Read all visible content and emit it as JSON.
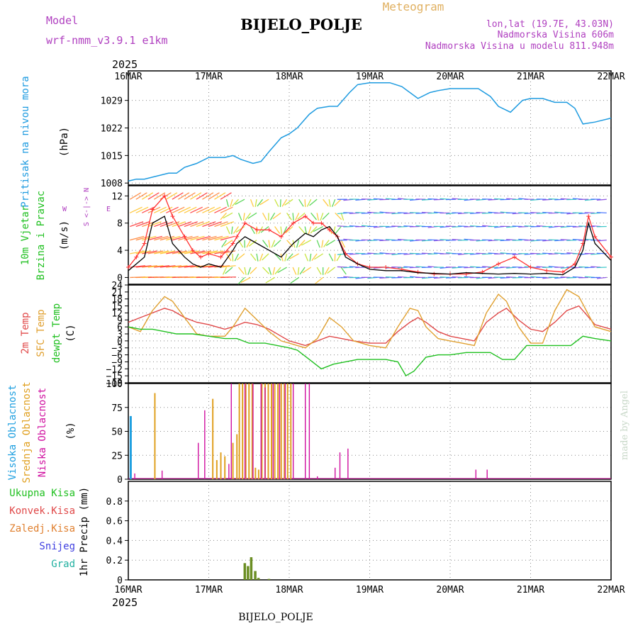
{
  "header": {
    "model_label": "Model",
    "model_name": "wrf-nmm_v3.9.1 e1km",
    "title": "BIJELO_POLJE",
    "meteogram": "Meteogram",
    "lonlat": "lon,lat (19.7E, 43.03N)",
    "altitude": "Nadmorska Visina 606m",
    "model_altitude": "Nadmorska Visina u modelu 811.948m"
  },
  "footer": {
    "station": "BIJELO_POLJE"
  },
  "credit": "made by Angel",
  "colors": {
    "pressure": "#1e9be0",
    "wind_speed": "#000000",
    "wind_gust": "#ff3030",
    "temp_2m": "#e04848",
    "temp_sfc": "#e0a030",
    "dewpoint": "#20c020",
    "cloud_high": "#20a0e0",
    "cloud_mid": "#e0a020",
    "cloud_low": "#d010a0",
    "precip": "#6b8e23",
    "title_purple": "#b040c0",
    "meteogram_orange": "#e0b060"
  },
  "time_axis": {
    "year_label": "2025",
    "ticks": [
      "16MAR",
      "17MAR",
      "18MAR",
      "19MAR",
      "20MAR",
      "21MAR",
      "22MAR"
    ]
  },
  "panels": {
    "pressure": {
      "ylabel_main": "Pritisak na nivou mora",
      "unit": "(hPa)"
    },
    "wind": {
      "ylabel_1": "10m Vjetar",
      "ylabel_2": "Brzina i Pravac",
      "unit": "(m/s)",
      "compass_ns": "S <-|-> N",
      "compass_w": "W",
      "compass_e": "E"
    },
    "temp": {
      "label_2m": "2m Temp",
      "label_sfc": "SFC Temp",
      "label_dew": "dewpt Temp",
      "unit": "(C)"
    },
    "cloud": {
      "label_high": "Visoka Oblacnost",
      "label_mid": "Srednja Oblacnost",
      "label_low": "Niska Oblacnost",
      "unit": "(%)"
    },
    "precip": {
      "label_total": "Ukupna Kisa",
      "label_conv": "Konvek.Kisa",
      "label_frz": "Zaledj.Kisa",
      "label_snow": "Snijeg",
      "label_grad": "Grad",
      "unit": "1hr Precip (mm)"
    }
  },
  "chart_data": [
    {
      "type": "line",
      "panel": "pressure",
      "x_range_days": [
        16,
        22
      ],
      "ylim": [
        1007.5,
        1036.5
      ],
      "yticks": [
        1008,
        1015,
        1022,
        1029
      ],
      "grid": true,
      "series": [
        {
          "x": [
            16.0,
            16.1,
            16.2,
            16.3,
            16.5,
            16.6,
            16.7,
            16.85,
            17.0,
            17.2,
            17.3,
            17.4,
            17.55,
            17.65,
            17.75,
            17.9,
            18.0,
            18.1,
            18.25,
            18.35,
            18.5,
            18.6,
            18.75,
            18.85,
            19.0,
            19.15,
            19.25,
            19.4,
            19.6,
            19.75,
            19.85,
            20.0,
            20.2,
            20.35,
            20.5,
            20.6,
            20.75,
            20.9,
            21.0,
            21.15,
            21.3,
            21.45,
            21.55,
            21.65,
            21.8,
            22.0
          ],
          "y": [
            1008.5,
            1009,
            1009,
            1009.5,
            1010.5,
            1010.5,
            1012,
            1013,
            1014.5,
            1014.5,
            1015,
            1014,
            1013,
            1013.5,
            1016,
            1019.5,
            1020.5,
            1022,
            1025.5,
            1027,
            1027.5,
            1027.5,
            1031,
            1033,
            1033.5,
            1033.5,
            1033.5,
            1032.5,
            1029.5,
            1031,
            1031.5,
            1032,
            1032,
            1032,
            1030,
            1027.5,
            1026,
            1029,
            1029.5,
            1029.5,
            1028.5,
            1028.5,
            1027,
            1023,
            1023.5,
            1024.5
          ]
        }
      ]
    },
    {
      "type": "line",
      "panel": "wind",
      "ylim": [
        -1,
        13.5
      ],
      "yticks": [
        0,
        4,
        8,
        12
      ],
      "grid": true,
      "series": [
        {
          "x": [
            16.0,
            16.1,
            16.2,
            16.3,
            16.45,
            16.55,
            16.7,
            16.8,
            16.9,
            17.0,
            17.15,
            17.3,
            17.35,
            17.45,
            17.6,
            17.75,
            17.9,
            18.05,
            18.2,
            18.3,
            18.4,
            18.5,
            18.6,
            18.7,
            18.85,
            19.0,
            19.2,
            19.4,
            19.6,
            19.8,
            20.0,
            20.2,
            20.4,
            20.6,
            20.8,
            21.0,
            21.2,
            21.4,
            21.55,
            21.65,
            21.72,
            21.8,
            22.0
          ],
          "y": [
            1,
            2,
            3,
            8,
            9,
            5,
            3,
            2,
            1.5,
            2,
            1.5,
            4,
            5,
            6,
            5,
            4,
            3,
            5,
            6.5,
            6,
            7,
            7.5,
            6,
            3,
            2,
            1.2,
            1,
            1,
            0.7,
            0.6,
            0.5,
            0.7,
            0.6,
            0.5,
            0.6,
            0.5,
            0.6,
            0.4,
            1.5,
            4,
            8,
            5,
            2.5
          ]
        },
        {
          "x": [
            16.0,
            16.1,
            16.2,
            16.3,
            16.45,
            16.55,
            16.7,
            16.8,
            16.9,
            17.0,
            17.15,
            17.3,
            17.35,
            17.45,
            17.6,
            17.75,
            17.9,
            18.05,
            18.2,
            18.3,
            18.4,
            18.5,
            18.6,
            18.7,
            18.85,
            19.0,
            19.2,
            19.4,
            19.6,
            19.8,
            20.0,
            20.2,
            20.4,
            20.6,
            20.8,
            21.0,
            21.2,
            21.4,
            21.55,
            21.65,
            21.72,
            21.8,
            22.0
          ],
          "y": [
            1.5,
            3,
            5,
            10,
            12,
            9,
            6,
            4,
            3,
            3.5,
            3,
            5,
            6,
            8,
            7,
            7,
            6,
            8,
            9,
            8,
            8,
            7,
            6,
            3.5,
            2,
            1.5,
            1.5,
            1.2,
            0.8,
            0.5,
            0.5,
            0.5,
            0.8,
            2,
            3,
            1.5,
            1,
            0.8,
            2,
            5,
            9,
            6,
            3
          ]
        }
      ]
    },
    {
      "type": "line",
      "panel": "temperature",
      "ylim": [
        -18,
        24
      ],
      "yticks": [
        -18,
        -15,
        -12,
        -9,
        -6,
        -3,
        0,
        3,
        6,
        9,
        12,
        15,
        18,
        21,
        24
      ],
      "grid": true,
      "series": [
        {
          "name": "2m Temp",
          "x": [
            16.0,
            16.15,
            16.3,
            16.45,
            16.55,
            16.7,
            16.85,
            17.0,
            17.2,
            17.3,
            17.45,
            17.6,
            17.75,
            17.9,
            18.0,
            18.1,
            18.2,
            18.35,
            18.5,
            18.65,
            18.8,
            19.0,
            19.2,
            19.35,
            19.5,
            19.6,
            19.7,
            19.85,
            20.0,
            20.15,
            20.3,
            20.45,
            20.6,
            20.7,
            20.85,
            21.0,
            21.15,
            21.3,
            21.45,
            21.6,
            21.8,
            22.0
          ],
          "y": [
            8,
            10,
            12,
            14,
            13,
            10,
            8,
            7,
            5,
            6,
            8,
            7,
            5,
            2,
            0,
            -1,
            -2,
            0,
            2,
            1,
            0,
            -1,
            -1,
            4,
            8,
            10,
            8,
            4,
            2,
            1,
            0,
            8,
            12,
            14,
            9,
            5,
            4,
            8,
            13,
            15,
            7,
            5
          ]
        },
        {
          "name": "SFC Temp",
          "x": [
            16.0,
            16.15,
            16.3,
            16.45,
            16.55,
            16.7,
            16.85,
            17.0,
            17.2,
            17.3,
            17.45,
            17.6,
            17.75,
            17.9,
            18.0,
            18.1,
            18.2,
            18.35,
            18.5,
            18.65,
            18.8,
            19.0,
            19.2,
            19.35,
            19.5,
            19.6,
            19.7,
            19.85,
            20.0,
            20.15,
            20.3,
            20.45,
            20.6,
            20.7,
            20.85,
            21.0,
            21.15,
            21.3,
            21.45,
            21.6,
            21.8,
            22.0
          ],
          "y": [
            6,
            4,
            13,
            19,
            17,
            10,
            3,
            2,
            2,
            6,
            14,
            9,
            4,
            0,
            -1,
            -2,
            -3,
            1,
            10,
            6,
            0,
            -2,
            -3,
            6,
            14,
            13,
            6,
            1,
            0,
            -1,
            -2,
            12,
            20,
            17,
            6,
            -1,
            -1,
            13,
            22,
            19,
            6,
            4
          ]
        },
        {
          "name": "dewpt Temp",
          "x": [
            16.0,
            16.15,
            16.3,
            16.45,
            16.6,
            16.8,
            17.0,
            17.2,
            17.35,
            17.5,
            17.7,
            17.85,
            18.0,
            18.1,
            18.25,
            18.4,
            18.55,
            18.7,
            18.85,
            19.0,
            19.2,
            19.35,
            19.45,
            19.55,
            19.7,
            19.85,
            20.0,
            20.2,
            20.35,
            20.5,
            20.65,
            20.8,
            20.95,
            21.1,
            21.3,
            21.5,
            21.65,
            21.8,
            22.0
          ],
          "y": [
            6,
            5,
            5,
            4,
            3,
            3,
            2,
            1,
            1,
            -1,
            -1,
            -2,
            -3,
            -4,
            -8,
            -12,
            -10,
            -9,
            -8,
            -8,
            -8,
            -9,
            -15,
            -13,
            -7,
            -6,
            -6,
            -5,
            -5,
            -5,
            -8,
            -8,
            -2,
            -2,
            -2,
            -2,
            2,
            1,
            0
          ]
        }
      ]
    },
    {
      "type": "bar",
      "panel": "cloud",
      "ylim": [
        0,
        100
      ],
      "yticks": [
        0,
        25,
        50,
        75,
        100
      ],
      "grid": true,
      "series": [
        {
          "name": "Visoka Oblacnost",
          "x": [
            16.03
          ],
          "y": [
            66
          ]
        },
        {
          "name": "Srednja Oblacnost",
          "x": [
            16.33,
            17.05,
            17.1,
            17.15,
            17.2,
            17.3,
            17.35,
            17.38,
            17.42,
            17.46,
            17.5,
            17.54,
            17.58,
            17.62,
            17.66,
            17.7,
            17.74,
            17.78,
            17.82,
            17.86,
            17.9,
            17.94,
            17.98,
            18.02
          ],
          "y": [
            90,
            84,
            20,
            28,
            24,
            38,
            47,
            100,
            100,
            100,
            100,
            100,
            12,
            10,
            100,
            100,
            100,
            100,
            100,
            100,
            100,
            100,
            100,
            100
          ]
        },
        {
          "name": "Niska Oblacnost",
          "x": [
            16.08,
            16.42,
            16.87,
            16.95,
            17.25,
            17.28,
            17.45,
            17.55,
            17.65,
            17.7,
            17.8,
            17.88,
            17.95,
            18.05,
            18.2,
            18.25,
            18.35,
            18.57,
            18.63,
            18.73,
            20.32,
            20.46
          ],
          "y": [
            6,
            9,
            38,
            72,
            16,
            100,
            100,
            100,
            100,
            96,
            100,
            100,
            100,
            100,
            100,
            100,
            3,
            12,
            28,
            32,
            10,
            10
          ]
        }
      ]
    },
    {
      "type": "bar",
      "panel": "precip",
      "ylim": [
        0,
        1
      ],
      "yticks": [
        0,
        0.2,
        0.4,
        0.6,
        0.8
      ],
      "grid": true,
      "series": [
        {
          "name": "Ukupna Kisa",
          "x": [
            17.45,
            17.49,
            17.53,
            17.58,
            17.62,
            17.75
          ],
          "y": [
            0.17,
            0.14,
            0.23,
            0.09,
            0.02,
            0.01
          ]
        }
      ]
    }
  ]
}
